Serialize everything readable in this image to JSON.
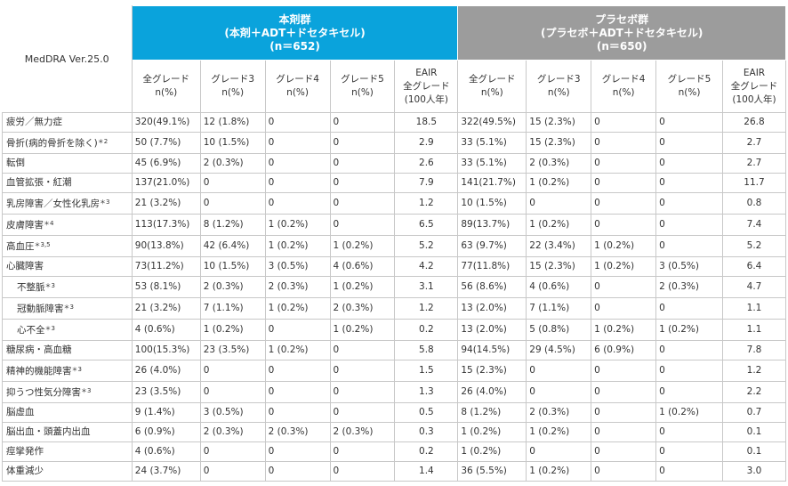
{
  "header": {
    "dict_version": "MedDRA Ver.25.0",
    "group1": {
      "title": "本剤群",
      "regimen": "(本剤＋ADT＋ドセタキセル)",
      "n": "(n＝652)"
    },
    "group2": {
      "title": "プラセボ群",
      "regimen": "(プラセボ＋ADT＋ドセタキセル)",
      "n": "(n＝650)"
    },
    "columns": [
      {
        "l1": "全グレード",
        "l2": "n(%)",
        "l3": ""
      },
      {
        "l1": "グレード3",
        "l2": "n(%)",
        "l3": ""
      },
      {
        "l1": "グレード4",
        "l2": "n(%)",
        "l3": ""
      },
      {
        "l1": "グレード5",
        "l2": "n(%)",
        "l3": ""
      },
      {
        "l1": "EAIR",
        "l2": "全グレード",
        "l3": "(100人年)"
      },
      {
        "l1": "全グレード",
        "l2": "n(%)",
        "l3": ""
      },
      {
        "l1": "グレード3",
        "l2": "n(%)",
        "l3": ""
      },
      {
        "l1": "グレード4",
        "l2": "n(%)",
        "l3": ""
      },
      {
        "l1": "グレード5",
        "l2": "n(%)",
        "l3": ""
      },
      {
        "l1": "EAIR",
        "l2": "全グレード",
        "l3": "(100人年)"
      }
    ]
  },
  "rows": [
    {
      "label": "疲労／無力症",
      "note": "",
      "indent": false,
      "cells": [
        "320(49.1%)",
        "12 (1.8%)",
        "0",
        "0",
        "18.5",
        "322(49.5%)",
        "15 (2.3%)",
        "0",
        "0",
        "26.8"
      ]
    },
    {
      "label": "骨折(病的骨折を除く)",
      "note": "＊2",
      "indent": false,
      "cells": [
        "50 (7.7%)",
        "10 (1.5%)",
        "0",
        "0",
        "2.9",
        "33 (5.1%)",
        "15 (2.3%)",
        "0",
        "0",
        "2.7"
      ]
    },
    {
      "label": "転倒",
      "note": "",
      "indent": false,
      "cells": [
        "45 (6.9%)",
        "2 (0.3%)",
        "0",
        "0",
        "2.6",
        "33 (5.1%)",
        "2 (0.3%)",
        "0",
        "0",
        "2.7"
      ]
    },
    {
      "label": "血管拡張・紅潮",
      "note": "",
      "indent": false,
      "cells": [
        "137(21.0%)",
        "0",
        "0",
        "0",
        "7.9",
        "141(21.7%)",
        "1 (0.2%)",
        "0",
        "0",
        "11.7"
      ]
    },
    {
      "label": "乳房障害／女性化乳房",
      "note": "＊3",
      "indent": false,
      "cells": [
        "21 (3.2%)",
        "0",
        "0",
        "0",
        "1.2",
        "10 (1.5%)",
        "0",
        "0",
        "0",
        "0.8"
      ]
    },
    {
      "label": "皮膚障害",
      "note": "＊4",
      "indent": false,
      "cells": [
        "113(17.3%)",
        "8 (1.2%)",
        "1 (0.2%)",
        "0",
        "6.5",
        "89(13.7%)",
        "1 (0.2%)",
        "0",
        "0",
        "7.4"
      ]
    },
    {
      "label": "高血圧",
      "note": "＊3,5",
      "indent": false,
      "cells": [
        "90(13.8%)",
        "42 (6.4%)",
        "1 (0.2%)",
        "1 (0.2%)",
        "5.2",
        "63 (9.7%)",
        "22 (3.4%)",
        "1 (0.2%)",
        "0",
        "5.2"
      ]
    },
    {
      "label": "心臓障害",
      "note": "",
      "indent": false,
      "cells": [
        "73(11.2%)",
        "10 (1.5%)",
        "3 (0.5%)",
        "4 (0.6%)",
        "4.2",
        "77(11.8%)",
        "15 (2.3%)",
        "1 (0.2%)",
        "3 (0.5%)",
        "6.4"
      ]
    },
    {
      "label": "不整脈",
      "note": "＊3",
      "indent": true,
      "cells": [
        "53 (8.1%)",
        "2 (0.3%)",
        "2 (0.3%)",
        "1 (0.2%)",
        "3.1",
        "56 (8.6%)",
        "4 (0.6%)",
        "0",
        "2 (0.3%)",
        "4.7"
      ]
    },
    {
      "label": "冠動脈障害",
      "note": "＊3",
      "indent": true,
      "cells": [
        "21 (3.2%)",
        "7 (1.1%)",
        "1 (0.2%)",
        "2 (0.3%)",
        "1.2",
        "13 (2.0%)",
        "7 (1.1%)",
        "0",
        "0",
        "1.1"
      ]
    },
    {
      "label": "心不全",
      "note": "＊3",
      "indent": true,
      "cells": [
        "4 (0.6%)",
        "1 (0.2%)",
        "0",
        "1 (0.2%)",
        "0.2",
        "13 (2.0%)",
        "5 (0.8%)",
        "1 (0.2%)",
        "1 (0.2%)",
        "1.1"
      ]
    },
    {
      "label": "糖尿病・高血糖",
      "note": "",
      "indent": false,
      "cells": [
        "100(15.3%)",
        "23 (3.5%)",
        "1 (0.2%)",
        "0",
        "5.8",
        "94(14.5%)",
        "29 (4.5%)",
        "6 (0.9%)",
        "0",
        "7.8"
      ]
    },
    {
      "label": "精神的機能障害",
      "note": "＊3",
      "indent": false,
      "cells": [
        "26 (4.0%)",
        "0",
        "0",
        "0",
        "1.5",
        "15 (2.3%)",
        "0",
        "0",
        "0",
        "1.2"
      ]
    },
    {
      "label": "抑うつ性気分障害",
      "note": "＊3",
      "indent": false,
      "cells": [
        "23 (3.5%)",
        "0",
        "0",
        "0",
        "1.3",
        "26 (4.0%)",
        "0",
        "0",
        "0",
        "2.2"
      ]
    },
    {
      "label": "脳虚血",
      "note": "",
      "indent": false,
      "cells": [
        "9 (1.4%)",
        "3 (0.5%)",
        "0",
        "0",
        "0.5",
        "8 (1.2%)",
        "2 (0.3%)",
        "0",
        "1 (0.2%)",
        "0.7"
      ]
    },
    {
      "label": "脳出血・頭蓋内出血",
      "note": "",
      "indent": false,
      "cells": [
        "6 (0.9%)",
        "2 (0.3%)",
        "2 (0.3%)",
        "2 (0.3%)",
        "0.3",
        "1 (0.2%)",
        "1 (0.2%)",
        "0",
        "0",
        "0.1"
      ]
    },
    {
      "label": "痙攣発作",
      "note": "",
      "indent": false,
      "cells": [
        "4 (0.6%)",
        "0",
        "0",
        "0",
        "0.2",
        "1 (0.2%)",
        "0",
        "0",
        "0",
        "0.1"
      ]
    },
    {
      "label": "体重減少",
      "note": "",
      "indent": false,
      "cells": [
        "24 (3.7%)",
        "0",
        "0",
        "0",
        "1.4",
        "36 (5.5%)",
        "1 (0.2%)",
        "0",
        "0",
        "3.0"
      ]
    }
  ]
}
